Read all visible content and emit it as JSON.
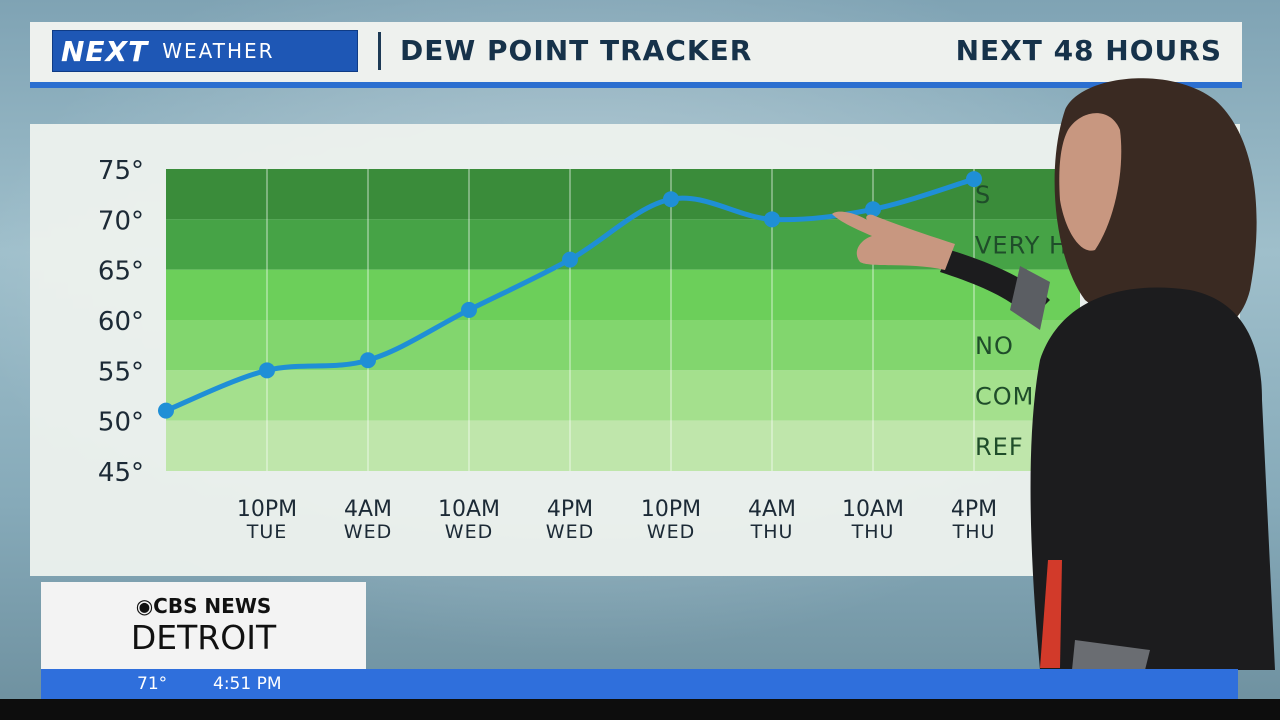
{
  "header": {
    "logo_next": "NEXT",
    "logo_weather": "WEATHER",
    "title": "DEW POINT TRACKER",
    "range": "NEXT 48 HOURS"
  },
  "chart_data": {
    "type": "line",
    "title": "DEW POINT TRACKER",
    "ylim": [
      45,
      75
    ],
    "y_ticks": [
      "75°",
      "70°",
      "65°",
      "60°",
      "55°",
      "50°",
      "45°"
    ],
    "x_labels": [
      {
        "time": "10PM",
        "day": "TUE"
      },
      {
        "time": "4AM",
        "day": "WED"
      },
      {
        "time": "10AM",
        "day": "WED"
      },
      {
        "time": "4PM",
        "day": "WED"
      },
      {
        "time": "10PM",
        "day": "WED"
      },
      {
        "time": "4AM",
        "day": "THU"
      },
      {
        "time": "10AM",
        "day": "THU"
      },
      {
        "time": "4PM",
        "day": "THU"
      }
    ],
    "series": [
      {
        "color": "#1f8fd6",
        "x_index": [
          0,
          1,
          2,
          3,
          4,
          5,
          6,
          7,
          8
        ],
        "values": [
          51,
          55,
          56,
          61,
          66,
          72,
          70,
          71,
          74
        ]
      }
    ],
    "bands": [
      {
        "label": "S",
        "from": 70,
        "to": 75,
        "color": "#3a8c3a"
      },
      {
        "label": "VERY H",
        "from": 65,
        "to": 70,
        "color": "#46a346"
      },
      {
        "label": "",
        "from": 60,
        "to": 65,
        "color": "#6ccf5a"
      },
      {
        "label": "NO",
        "from": 55,
        "to": 60,
        "color": "#82d66e"
      },
      {
        "label": "COMFO",
        "from": 50,
        "to": 55,
        "color": "#a4e08d"
      },
      {
        "label": "REF",
        "from": 45,
        "to": 50,
        "color": "#bfe6ab"
      }
    ],
    "grid": true
  },
  "station": {
    "network": "CBS NEWS",
    "city": "DETROIT"
  },
  "ticker": {
    "temperature": "71°",
    "time": "4:51 PM"
  }
}
